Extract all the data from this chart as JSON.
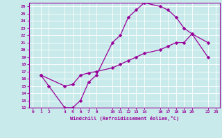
{
  "xlabel": "Windchill (Refroidissement éolien,°C)",
  "line_color": "#990099",
  "bg_color": "#c8eaea",
  "grid_color": "#b0d8d8",
  "xlim": [
    -0.5,
    23.5
  ],
  "ylim": [
    12,
    26.5
  ],
  "xticks": [
    0,
    1,
    2,
    4,
    5,
    6,
    7,
    8,
    10,
    11,
    12,
    13,
    14,
    16,
    17,
    18,
    19,
    20,
    22,
    23
  ],
  "yticks": [
    12,
    13,
    14,
    15,
    16,
    17,
    18,
    19,
    20,
    21,
    22,
    23,
    24,
    25,
    26
  ],
  "line1_x": [
    1,
    2,
    4,
    5,
    6,
    7,
    8,
    10,
    11,
    12,
    13,
    14,
    16,
    17,
    18,
    19,
    20,
    22
  ],
  "line1_y": [
    16.5,
    15,
    12,
    12,
    13,
    15.5,
    16.5,
    21,
    22,
    24.5,
    25.5,
    26.5,
    26,
    25.5,
    24.5,
    23,
    22.2,
    21
  ],
  "line2_x": [
    1,
    4,
    5,
    6,
    7,
    8,
    10,
    11,
    12,
    13,
    14,
    16,
    17,
    18,
    19,
    20,
    22
  ],
  "line2_y": [
    16.5,
    15,
    15.2,
    16.5,
    16.8,
    17,
    17.5,
    18,
    18.5,
    19,
    19.5,
    20,
    20.5,
    21,
    21,
    22.2,
    19
  ],
  "markersize": 2.5
}
